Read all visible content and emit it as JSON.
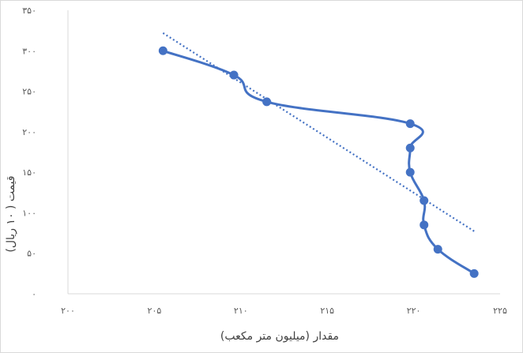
{
  "chart_data": {
    "type": "line",
    "xlabel": "مقدار (میلیون متر مکعب)",
    "ylabel": "قیمت ( ۱۰ ریال)",
    "xlim": [
      200,
      225
    ],
    "ylim": [
      0,
      350
    ],
    "x_tick_values": [
      200,
      205,
      210,
      215,
      220,
      225
    ],
    "x_tick_labels": [
      "۲۰۰",
      "۲۰۵",
      "۲۱۰",
      "۲۱۵",
      "۲۲۰",
      "۲۲۵"
    ],
    "y_tick_values": [
      0,
      50,
      100,
      150,
      200,
      250,
      300,
      350
    ],
    "y_tick_labels": [
      "۰",
      "۵۰",
      "۱۰۰",
      "۱۵۰",
      "۲۰۰",
      "۲۵۰",
      "۳۰۰",
      "۳۵۰"
    ],
    "grid": false,
    "legend": "none",
    "series": [
      {
        "style": "smooth line with markers",
        "color": "#4472c4",
        "points": [
          {
            "x": 205.5,
            "y": 300
          },
          {
            "x": 209.6,
            "y": 270
          },
          {
            "x": 211.5,
            "y": 237
          },
          {
            "x": 219.8,
            "y": 210
          },
          {
            "x": 219.8,
            "y": 180
          },
          {
            "x": 219.8,
            "y": 150
          },
          {
            "x": 220.6,
            "y": 115
          },
          {
            "x": 220.6,
            "y": 85
          },
          {
            "x": 221.4,
            "y": 55
          },
          {
            "x": 223.5,
            "y": 25
          }
        ]
      }
    ],
    "trendline": {
      "style": "dotted",
      "type": "linear",
      "color": "#4472c4",
      "x_start": 205.5,
      "x_end": 223.5
    }
  }
}
